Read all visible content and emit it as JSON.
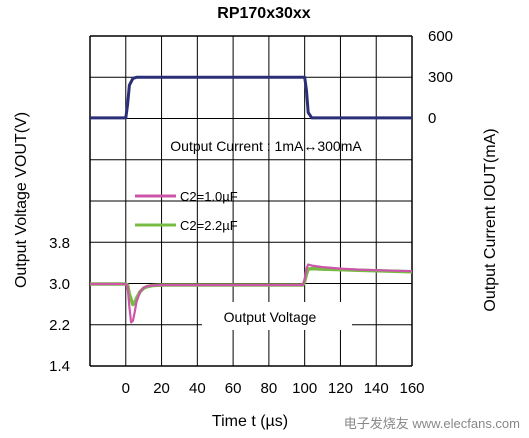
{
  "chart_data": {
    "type": "line",
    "title": "RP170x30xx",
    "xlabel": "Time t (µs)",
    "ylabel_left": "Output Voltage VOUT(V)",
    "ylabel_right": "Output Current IOUT(mA)",
    "x_ticks": [
      "0",
      "20",
      "40",
      "60",
      "80",
      "100",
      "120",
      "140",
      "160"
    ],
    "x_range": [
      -20,
      160
    ],
    "left_y_ticks": [
      "3.8",
      "3.0",
      "2.2",
      "1.4"
    ],
    "left_y_range": [
      1.4,
      3.8
    ],
    "right_y_ticks": [
      "600",
      "300",
      "0"
    ],
    "right_y_range": [
      0,
      600
    ],
    "grid": true,
    "annotations": {
      "current": "Output Current : 1mA↔300mA",
      "voltage": "Output Voltage"
    },
    "legend_placement": "middle-left",
    "series": [
      {
        "name": "C2=1.0µF",
        "axis": "left",
        "color": "#cc55aa",
        "x": [
          -20,
          0,
          1,
          2,
          3,
          4,
          5,
          6,
          8,
          10,
          12,
          15,
          20,
          40,
          60,
          80,
          99,
          100,
          101,
          102,
          104,
          110,
          120,
          130,
          140,
          150,
          160
        ],
        "y": [
          3.0,
          3.0,
          2.96,
          2.55,
          2.25,
          2.28,
          2.45,
          2.65,
          2.85,
          2.93,
          2.96,
          2.97,
          2.98,
          2.98,
          2.98,
          2.98,
          2.98,
          3.1,
          3.3,
          3.38,
          3.36,
          3.33,
          3.3,
          3.28,
          3.27,
          3.26,
          3.25
        ]
      },
      {
        "name": "C2=2.2µF",
        "axis": "left",
        "color": "#77bb44",
        "x": [
          -20,
          0,
          1,
          2,
          4,
          5,
          6,
          8,
          10,
          12,
          15,
          20,
          40,
          60,
          80,
          99,
          100,
          101,
          102,
          104,
          110,
          120,
          130,
          140,
          150,
          160
        ],
        "y": [
          3.0,
          3.0,
          2.98,
          2.8,
          2.6,
          2.62,
          2.72,
          2.85,
          2.92,
          2.95,
          2.97,
          2.98,
          2.98,
          2.98,
          2.98,
          2.98,
          3.05,
          3.2,
          3.29,
          3.3,
          3.29,
          3.28,
          3.27,
          3.26,
          3.25,
          3.24
        ]
      },
      {
        "name": "",
        "axis": "right",
        "color": "#2a2f78",
        "x": [
          -20,
          0,
          1,
          2,
          4,
          6,
          100,
          101,
          102,
          104,
          160
        ],
        "y": [
          1,
          1,
          100,
          240,
          290,
          298,
          298,
          200,
          40,
          1,
          1
        ]
      }
    ]
  },
  "watermark": "电子发烧友 www.elecfans.com"
}
